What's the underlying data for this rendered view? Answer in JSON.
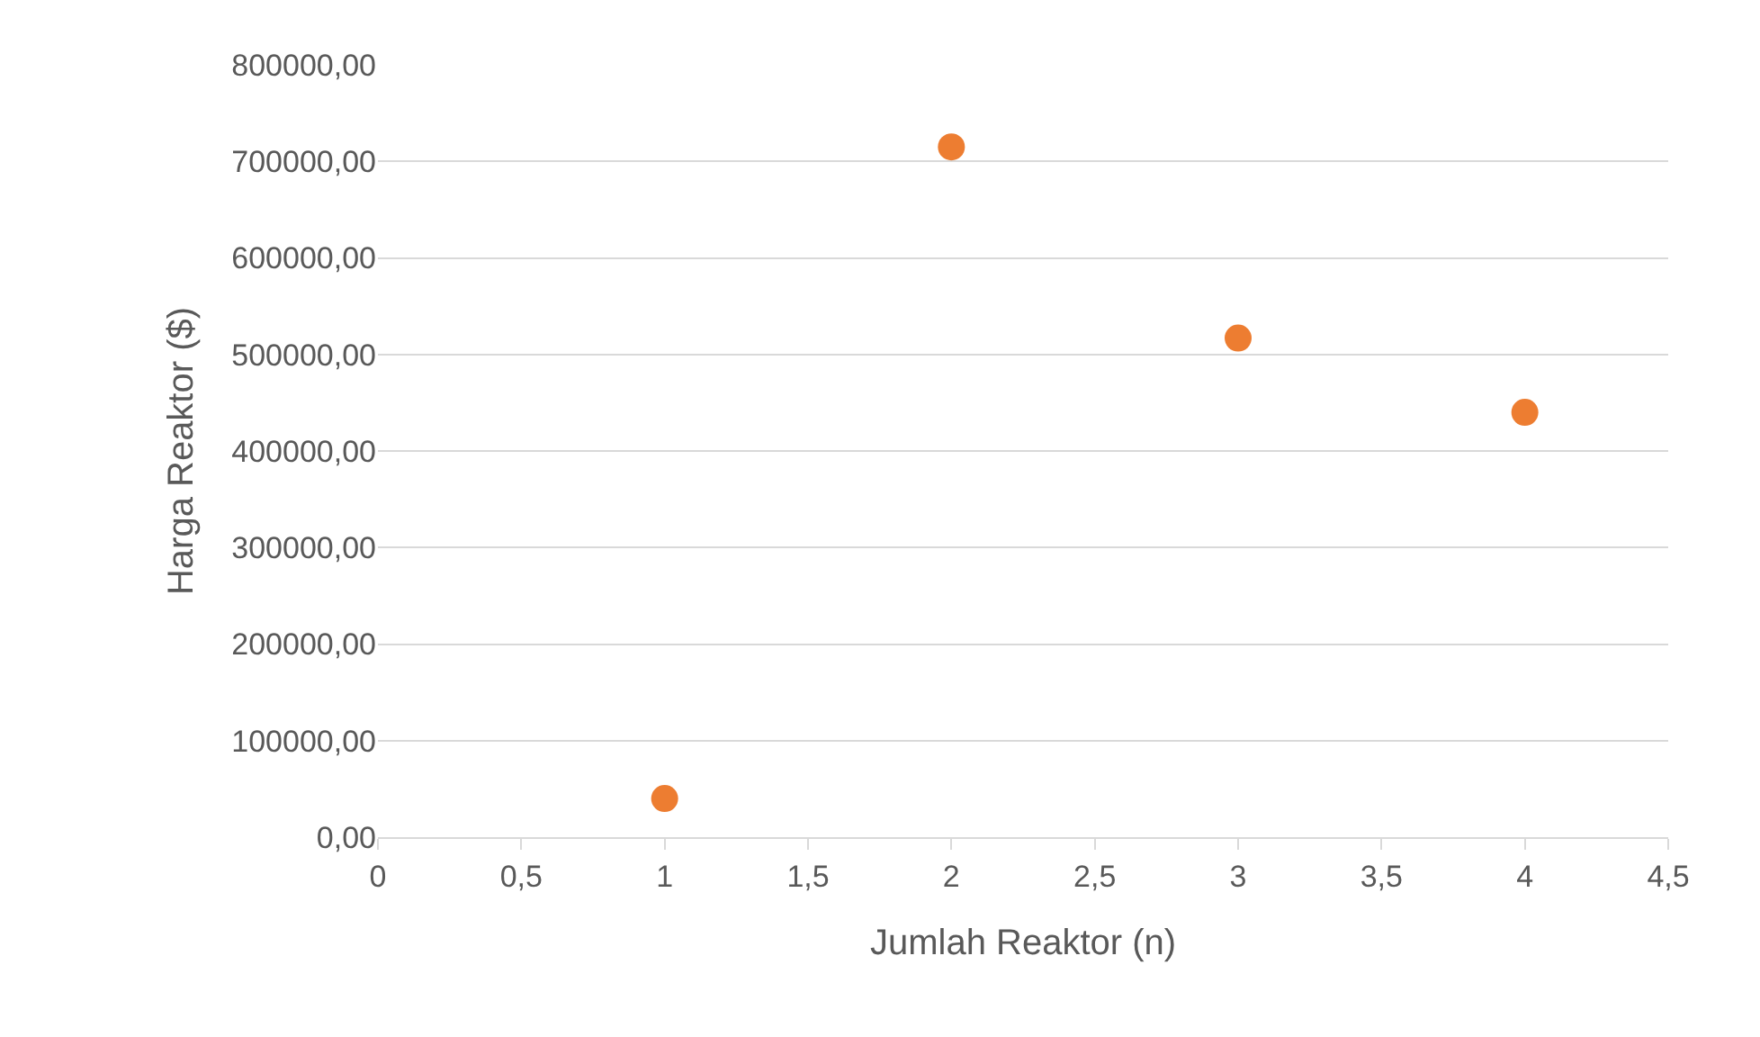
{
  "chart_data": {
    "type": "scatter",
    "xlabel": "Jumlah Reaktor (n)",
    "ylabel": "Harga Reaktor ($)",
    "x": [
      1,
      2,
      3,
      4
    ],
    "series": [
      {
        "color": "#ed7d31",
        "values": [
          40000,
          715000,
          517000,
          440000
        ]
      }
    ],
    "marker": "circle",
    "grid": "y",
    "legend": false,
    "xlim": [
      0,
      4.5
    ],
    "xticks": [
      0,
      {
        "value": 0.5,
        "label": "0,5"
      },
      1,
      {
        "value": 1.5,
        "label": "1,5"
      },
      2,
      {
        "value": 2.5,
        "label": "2,5"
      },
      3,
      {
        "value": 3.5,
        "label": "3,5"
      },
      4,
      {
        "value": 4.5,
        "label": "4,5"
      }
    ],
    "ylim": [
      0,
      800000
    ],
    "yticks": [
      {
        "value": 0,
        "label": "0,00"
      },
      {
        "value": 100000,
        "label": "100000,00"
      },
      {
        "value": 200000,
        "label": "200000,00"
      },
      {
        "value": 300000,
        "label": "300000,00"
      },
      {
        "value": 400000,
        "label": "400000,00"
      },
      {
        "value": 500000,
        "label": "500000,00"
      },
      {
        "value": 600000,
        "label": "600000,00"
      },
      {
        "value": 700000,
        "label": "700000,00"
      },
      {
        "value": 800000,
        "label": "800000,00"
      }
    ]
  }
}
